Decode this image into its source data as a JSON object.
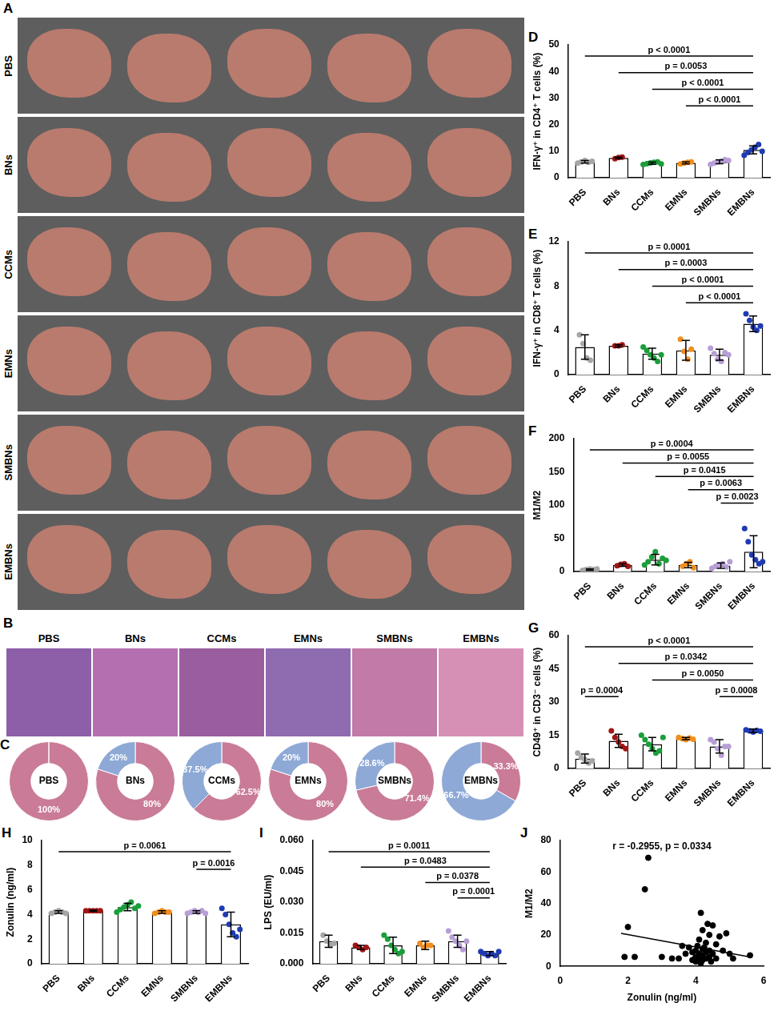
{
  "panel_A": {
    "panel": "A",
    "row_labels": [
      "PBS",
      "BNs",
      "CCMs",
      "EMNs",
      "SMBNs",
      "EMBNs"
    ]
  },
  "panel_B": {
    "panel": "B",
    "labels": [
      "PBS",
      "BNs",
      "CCMs",
      "EMNs",
      "SMBNs",
      "EMBNs"
    ]
  },
  "chart_data": [
    {
      "type": "doughnut",
      "panel": "C",
      "title": "PBS",
      "values": [
        100
      ],
      "value_labels": [
        "100%"
      ],
      "colors": [
        "#c97b97"
      ],
      "data_labels": true
    },
    {
      "type": "doughnut",
      "title": "BNs",
      "values": [
        80,
        20
      ],
      "value_labels": [
        "80%",
        "20%"
      ],
      "colors": [
        "#c97b97",
        "#8ea9d6"
      ],
      "data_labels": true
    },
    {
      "type": "doughnut",
      "title": "CCMs",
      "values": [
        62.5,
        37.5
      ],
      "value_labels": [
        "62.5%",
        "37.5%"
      ],
      "colors": [
        "#c97b97",
        "#8ea9d6"
      ],
      "data_labels": true
    },
    {
      "type": "doughnut",
      "title": "EMNs",
      "values": [
        80,
        20
      ],
      "value_labels": [
        "80%",
        "20%"
      ],
      "colors": [
        "#c97b97",
        "#8ea9d6"
      ],
      "data_labels": true
    },
    {
      "type": "doughnut",
      "title": "SMBNs",
      "values": [
        71.4,
        28.6
      ],
      "value_labels": [
        "71.4%",
        "28.6%"
      ],
      "colors": [
        "#c97b97",
        "#8ea9d6"
      ],
      "data_labels": true
    },
    {
      "type": "doughnut",
      "title": "EMBNs",
      "values": [
        33.3,
        66.7
      ],
      "value_labels": [
        "33.3%",
        "66.7%"
      ],
      "colors": [
        "#c97b97",
        "#8ea9d6"
      ],
      "data_labels": true
    },
    {
      "type": "bar",
      "panel": "D",
      "y_label": "IFN-γ⁺ in CD4⁺ T cells (%)",
      "categories": [
        "PBS",
        "BNs",
        "CCMs",
        "EMNs",
        "SMBNs",
        "EMBNs"
      ],
      "values": [
        6,
        7.5,
        5.5,
        5.6,
        6,
        10.5
      ],
      "errors": [
        0.5,
        0.3,
        0.4,
        0.4,
        0.7,
        1.5
      ],
      "points": [
        [
          5.5,
          6,
          6.5,
          5.8,
          6.2
        ],
        [
          7.2,
          7.6,
          7.8
        ],
        [
          5,
          5.3,
          5.6,
          5.8,
          6,
          5.2
        ],
        [
          5.2,
          5.5,
          5.8,
          6
        ],
        [
          5,
          5.5,
          6,
          6.3,
          6.8,
          6.5
        ],
        [
          8.5,
          9.5,
          10.5,
          11.5,
          12.5,
          10
        ]
      ],
      "colors": [
        "#a6a6a6",
        "#a31515",
        "#1b9e3a",
        "#f28e1c",
        "#b79fd6",
        "#1f3bb3"
      ],
      "ylim": [
        0,
        50
      ],
      "yticks": [
        0,
        10,
        20,
        30,
        40,
        50
      ],
      "grid": false,
      "annotations": [
        {
          "from": "PBS",
          "to": "EMBNs",
          "text": "p < 0.0001"
        },
        {
          "from": "BNs",
          "to": "EMBNs",
          "text": "p = 0.0053"
        },
        {
          "from": "CCMs",
          "to": "EMBNs",
          "text": "p < 0.0001"
        },
        {
          "from": "EMNs",
          "to": "EMBNs",
          "text": "p < 0.0001"
        }
      ]
    },
    {
      "type": "bar",
      "panel": "E",
      "y_label": "IFN-γ⁺ in CD8⁺ T cells (%)",
      "categories": [
        "PBS",
        "BNs",
        "CCMs",
        "EMNs",
        "SMBNs",
        "EMBNs"
      ],
      "values": [
        2.5,
        2.6,
        1.9,
        2.2,
        1.8,
        4.6
      ],
      "errors": [
        1.1,
        0.1,
        0.5,
        0.9,
        0.5,
        0.7
      ],
      "points": [
        [
          3.6,
          2.8,
          1.5,
          1.3
        ],
        [
          2.6,
          2.6,
          2.7
        ],
        [
          2.5,
          2.2,
          1.8,
          1.5,
          1.2,
          1.8
        ],
        [
          3.2,
          2.1,
          1.4,
          2.3
        ],
        [
          2.4,
          1.9,
          1.4,
          1.2,
          2,
          1.8
        ],
        [
          5.5,
          4.9,
          4.3,
          4,
          4.4
        ]
      ],
      "colors": [
        "#a6a6a6",
        "#a31515",
        "#1b9e3a",
        "#f28e1c",
        "#b79fd6",
        "#1f3bb3"
      ],
      "ylim": [
        0,
        12
      ],
      "yticks": [
        0,
        4,
        8,
        12
      ],
      "grid": false,
      "annotations": [
        {
          "from": "PBS",
          "to": "EMBNs",
          "text": "p = 0.0001"
        },
        {
          "from": "BNs",
          "to": "EMBNs",
          "text": "p = 0.0003"
        },
        {
          "from": "CCMs",
          "to": "EMBNs",
          "text": "p < 0.0001"
        },
        {
          "from": "EMNs",
          "to": "EMBNs",
          "text": "p < 0.0001"
        }
      ]
    },
    {
      "type": "bar",
      "panel": "F",
      "y_label": "M1/M2",
      "categories": [
        "PBS",
        "BNs",
        "CCMs",
        "EMNs",
        "SMBNs",
        "EMBNs"
      ],
      "values": [
        3,
        10,
        18,
        10,
        9,
        30
      ],
      "errors": [
        1,
        2,
        8,
        4,
        4,
        24
      ],
      "points": [
        [
          2,
          3,
          4,
          3,
          4
        ],
        [
          9,
          11,
          12,
          8
        ],
        [
          10,
          15,
          22,
          30,
          12,
          20,
          17
        ],
        [
          8,
          12,
          15,
          6
        ],
        [
          5,
          8,
          10,
          12,
          7,
          15
        ],
        [
          65,
          45,
          25,
          18,
          12,
          15
        ]
      ],
      "colors": [
        "#a6a6a6",
        "#a31515",
        "#1b9e3a",
        "#f28e1c",
        "#b79fd6",
        "#1f3bb3"
      ],
      "ylim": [
        0,
        200
      ],
      "yticks": [
        0,
        50,
        100,
        150,
        200
      ],
      "grid": false,
      "annotations": [
        {
          "from": "PBS",
          "to": "EMBNs",
          "text": "p = 0.0004"
        },
        {
          "from": "BNs",
          "to": "EMBNs",
          "text": "p = 0.0055"
        },
        {
          "from": "CCMs",
          "to": "EMBNs",
          "text": "p = 0.0415"
        },
        {
          "from": "EMNs",
          "to": "EMBNs",
          "text": "p = 0.0063"
        },
        {
          "from": "SMBNs",
          "to": "EMBNs",
          "text": "p = 0.0023"
        }
      ]
    },
    {
      "type": "bar",
      "panel": "G",
      "y_label": "CD49⁺ in CD3⁻ cells (%)",
      "categories": [
        "PBS",
        "BNs",
        "CCMs",
        "EMNs",
        "SMBNs",
        "EMBNs"
      ],
      "values": [
        4.5,
        12.5,
        11,
        13.5,
        10,
        17
      ],
      "errors": [
        2,
        3,
        3,
        0.5,
        3,
        0.8
      ],
      "points": [
        [
          7,
          5,
          4,
          2.5,
          3.5
        ],
        [
          17,
          14,
          12,
          10,
          9
        ],
        [
          15,
          13,
          11,
          9,
          7,
          8,
          14
        ],
        [
          14,
          13.5,
          13,
          13.8,
          13.2
        ],
        [
          13,
          12,
          9,
          6,
          10,
          10
        ],
        [
          17.5,
          17,
          16.5,
          17.2,
          16.8
        ]
      ],
      "colors": [
        "#a6a6a6",
        "#a31515",
        "#1b9e3a",
        "#f28e1c",
        "#b79fd6",
        "#1f3bb3"
      ],
      "ylim": [
        0,
        60
      ],
      "yticks": [
        0,
        15,
        30,
        45,
        60
      ],
      "grid": false,
      "annotations": [
        {
          "from": "PBS",
          "to": "EMBNs",
          "text": "p < 0.0001"
        },
        {
          "from": "BNs",
          "to": "EMBNs",
          "text": "p = 0.0342"
        },
        {
          "from": "CCMs",
          "to": "EMBNs",
          "text": "p = 0.0050"
        },
        {
          "from": "PBS",
          "to": "BNs",
          "text": "p = 0.0004"
        },
        {
          "from": "SMBNs",
          "to": "EMBNs",
          "text": "p = 0.0008"
        }
      ]
    },
    {
      "type": "bar",
      "panel": "H",
      "y_label": "Zonulin (ng/ml)",
      "categories": [
        "PBS",
        "BNs",
        "CCMs",
        "EMNs",
        "SMBNs",
        "EMBNs"
      ],
      "values": [
        4.2,
        4.3,
        4.6,
        4.2,
        4.2,
        3.2
      ],
      "errors": [
        0.1,
        0.05,
        0.3,
        0.1,
        0.1,
        1
      ],
      "points": [
        [
          4.1,
          4.2,
          4.3,
          4.2,
          4.1
        ],
        [
          4.3,
          4.3,
          4.3,
          4.3,
          4.3
        ],
        [
          4.2,
          4.4,
          4.6,
          4.8,
          5,
          4.5,
          4.7
        ],
        [
          4.1,
          4.2,
          4.3,
          4.2,
          4.2
        ],
        [
          4.1,
          4.2,
          4.3,
          4.2,
          4.3,
          4.1
        ],
        [
          4.5,
          4,
          3.2,
          2.5,
          2.2,
          2.8
        ]
      ],
      "colors": [
        "#a6a6a6",
        "#a31515",
        "#1b9e3a",
        "#f28e1c",
        "#b79fd6",
        "#1f3bb3"
      ],
      "ylim": [
        0,
        10
      ],
      "yticks": [
        0,
        2,
        4,
        6,
        8,
        10
      ],
      "grid": false,
      "annotations": [
        {
          "from": "PBS",
          "to": "EMBNs",
          "text": "p = 0.0061"
        },
        {
          "from": "SMBNs",
          "to": "EMBNs",
          "text": "p = 0.0016"
        }
      ]
    },
    {
      "type": "bar",
      "panel": "I",
      "y_label": "LPS (EU/ml)",
      "categories": [
        "PBS",
        "BNs",
        "CCMs",
        "EMNs",
        "SMBNs",
        "EMBNs"
      ],
      "values": [
        0.011,
        0.008,
        0.009,
        0.009,
        0.011,
        0.005
      ],
      "errors": [
        0.003,
        0.001,
        0.004,
        0.002,
        0.003,
        0.001
      ],
      "points": [
        [
          0.014,
          0.011,
          0.009,
          0.01
        ],
        [
          0.009,
          0.008,
          0.007,
          0.008
        ],
        [
          0.014,
          0.012,
          0.009,
          0.007,
          0.005,
          0.006
        ],
        [
          0.01,
          0.008,
          0.009,
          0.009
        ],
        [
          0.016,
          0.013,
          0.011,
          0.009,
          0.007,
          0.011
        ],
        [
          0.006,
          0.005,
          0.004,
          0.005,
          0.004,
          0.006
        ]
      ],
      "colors": [
        "#a6a6a6",
        "#a31515",
        "#1b9e3a",
        "#f28e1c",
        "#b79fd6",
        "#1f3bb3"
      ],
      "ylim": [
        0,
        0.06
      ],
      "yticks": [
        {
          "value": 0,
          "label": "0.000"
        },
        {
          "value": 0.015,
          "label": "0.015"
        },
        {
          "value": 0.03,
          "label": "0.030"
        },
        {
          "value": 0.045,
          "label": "0.045"
        },
        {
          "value": 0.06,
          "label": "0.060"
        }
      ],
      "grid": false,
      "annotations": [
        {
          "from": "PBS",
          "to": "EMBNs",
          "text": "p = 0.0011"
        },
        {
          "from": "BNs",
          "to": "EMBNs",
          "text": "p = 0.0483"
        },
        {
          "from": "EMNs",
          "to": "EMBNs",
          "text": "p = 0.0378"
        },
        {
          "from": "SMBNs",
          "to": "EMBNs",
          "text": "p = 0.0001"
        }
      ]
    },
    {
      "type": "scatter",
      "panel": "J",
      "x_label": "Zonulin (ng/ml)",
      "y_label": "M1/M2",
      "x": [
        2.0,
        2.6,
        2.5,
        1.9,
        2.2,
        3.0,
        3.3,
        3.5,
        3.6,
        3.7,
        3.8,
        3.9,
        3.9,
        4.0,
        4.0,
        4.0,
        4.05,
        4.1,
        4.1,
        4.1,
        4.15,
        4.2,
        4.2,
        4.2,
        4.2,
        4.25,
        4.3,
        4.3,
        4.3,
        4.35,
        4.4,
        4.4,
        4.4,
        4.5,
        4.5,
        4.6,
        4.6,
        4.7,
        4.8,
        4.9,
        5.0,
        5.1,
        5.6,
        4.45,
        4.15
      ],
      "y": [
        25,
        69,
        49,
        6,
        6,
        6,
        5,
        5,
        13,
        8,
        12,
        4,
        9,
        3,
        6,
        10,
        13,
        5,
        8,
        17,
        34,
        4,
        7,
        11,
        23,
        12,
        5,
        9,
        15,
        27,
        6,
        10,
        20,
        8,
        26,
        14,
        5,
        19,
        10,
        21,
        8,
        5,
        7,
        3,
        2
      ],
      "color": "#000000",
      "xlim": [
        0,
        6
      ],
      "xticks": [
        0,
        2,
        4,
        6
      ],
      "ylim": [
        0,
        80
      ],
      "yticks": [
        0,
        20,
        40,
        60,
        80
      ],
      "grid": false,
      "fit_line": {
        "x": [
          1.8,
          5.6
        ],
        "y": [
          21,
          6
        ]
      },
      "annotations": [
        {
          "text": "r = -0.2955, p = 0.0334"
        }
      ]
    }
  ]
}
